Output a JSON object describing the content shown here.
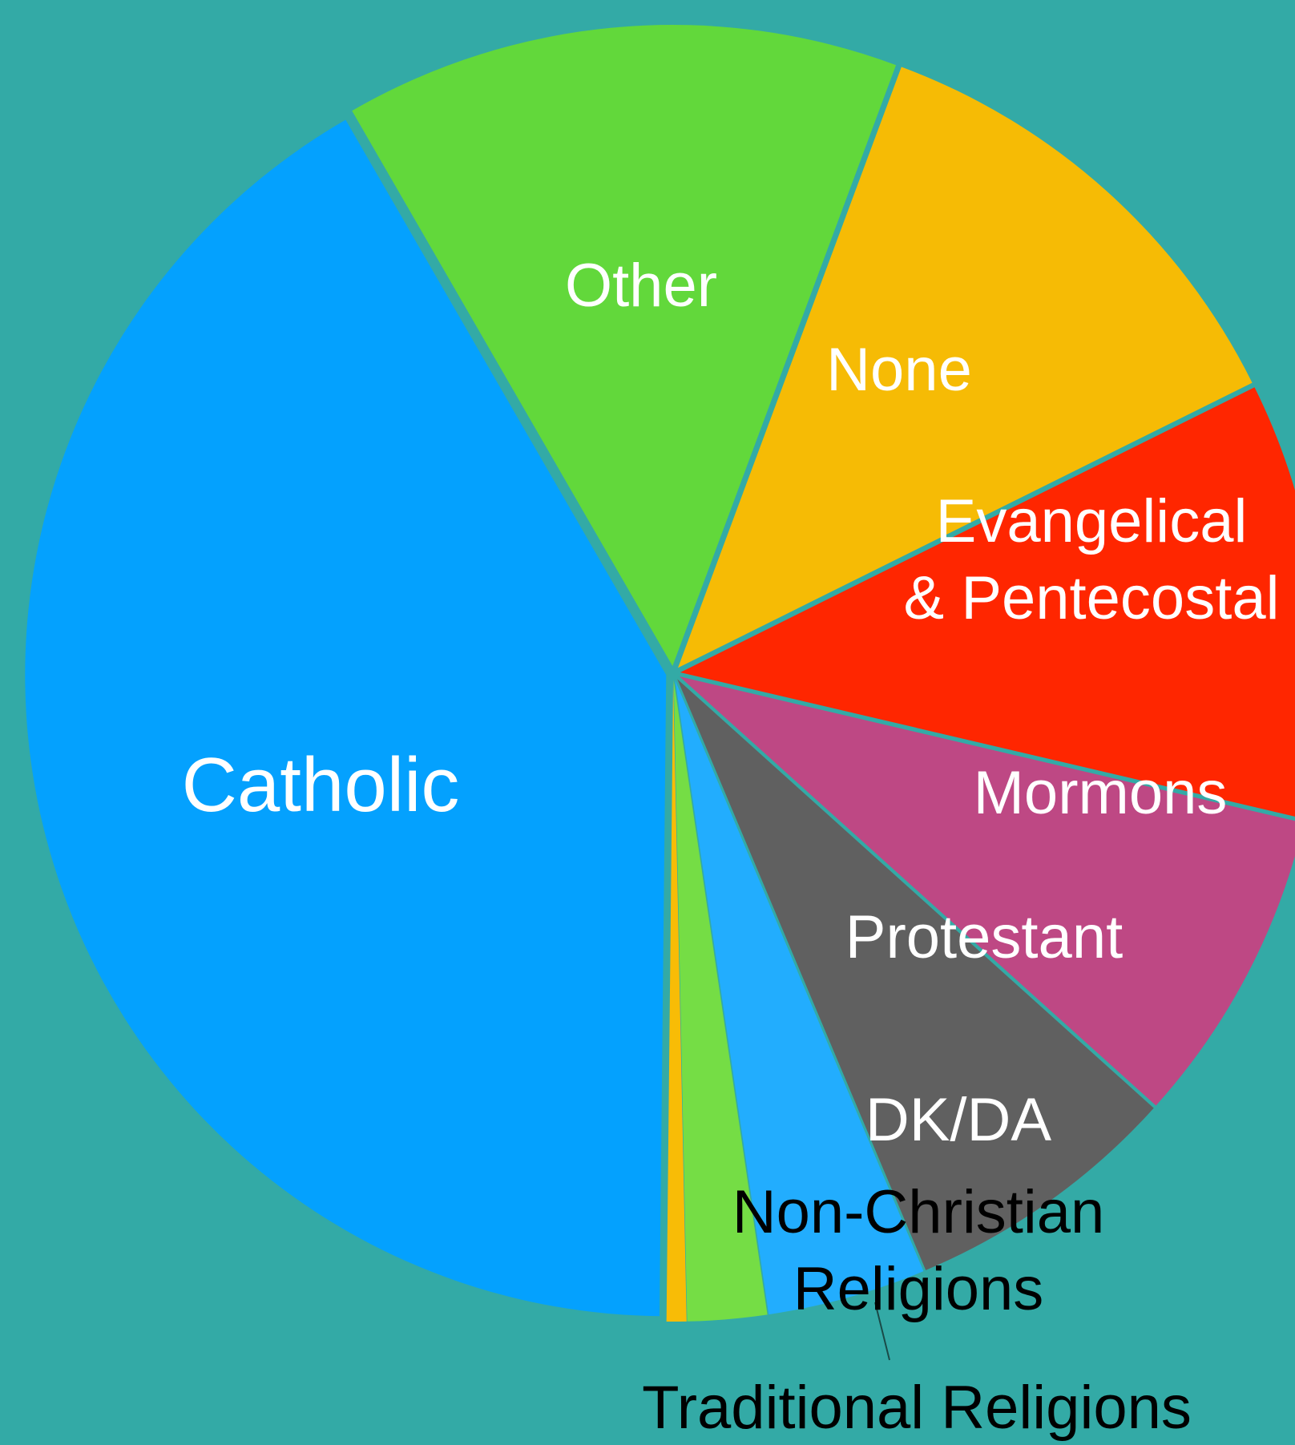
{
  "chart_data": {
    "type": "pie",
    "title": "",
    "slices": [
      {
        "label": "Other",
        "value": 14.0,
        "color": "#62d83b",
        "text_color": "#ffffff"
      },
      {
        "label": "None",
        "value": 12.0,
        "color": "#f6bb05",
        "text_color": "#ffffff"
      },
      {
        "label": "Evangelical & Pentecostal",
        "label_lines": [
          "Evangelical",
          "& Pentecostal"
        ],
        "value": 11.0,
        "color": "#ff2600",
        "text_color": "#ffffff"
      },
      {
        "label": "Mormons",
        "value": 8.0,
        "color": "#be4884",
        "text_color": "#ffffff"
      },
      {
        "label": "Protestant",
        "value": 7.0,
        "color": "#606060",
        "text_color": "#ffffff"
      },
      {
        "label": "DK/DA",
        "value": 4.0,
        "color": "#22adfe",
        "text_color": "#ffffff"
      },
      {
        "label": "Non-Christian Religions",
        "label_lines": [
          "Non-Christian",
          "Religions"
        ],
        "value": 2.0,
        "color": "#75dd45",
        "text_color": "#000000"
      },
      {
        "label": "Traditional Religions",
        "value": 0.5,
        "color": "#f8bc06",
        "text_color": "#000000"
      },
      {
        "label": "Catholic",
        "value": 41.5,
        "color": "#04a1fe",
        "text_color": "#ffffff"
      }
    ],
    "legend": "none"
  }
}
